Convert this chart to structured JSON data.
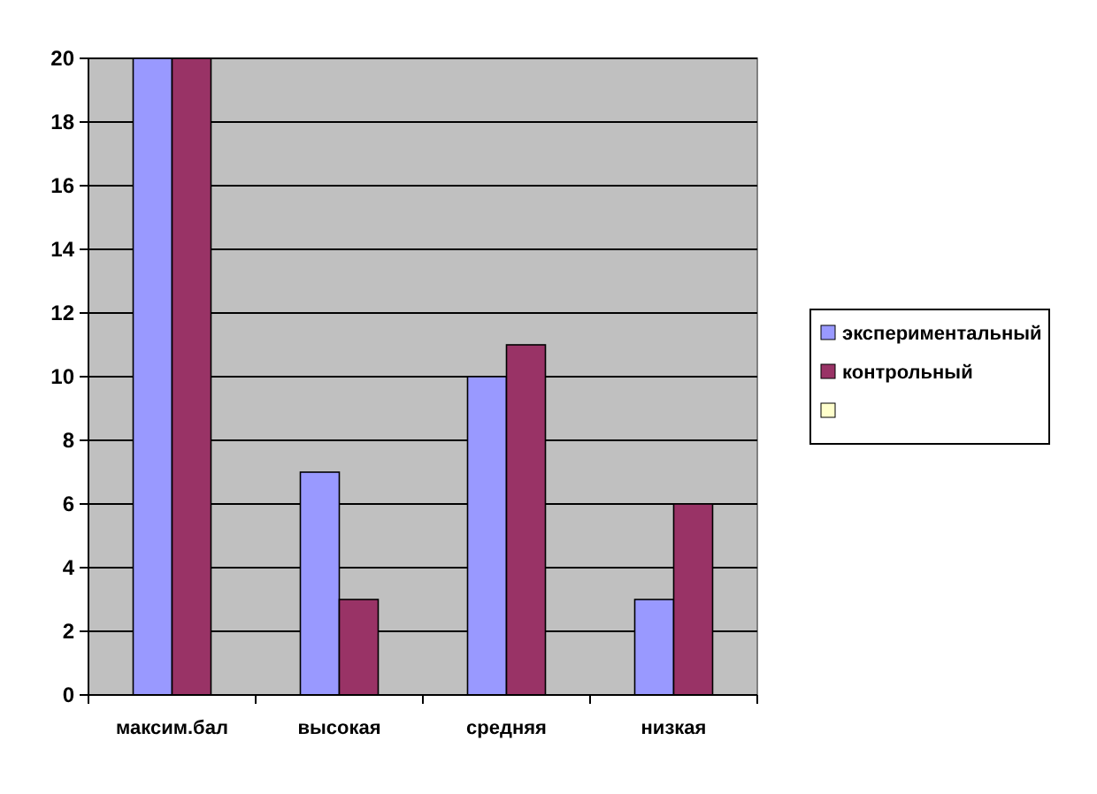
{
  "chart_data": {
    "type": "bar",
    "categories": [
      "максим.бал",
      "высокая",
      "средняя",
      "низкая"
    ],
    "series": [
      {
        "name": "экспериментальный",
        "color": "#9999ff",
        "values": [
          20,
          7,
          10,
          3
        ]
      },
      {
        "name": "контрольный",
        "color": "#993366",
        "values": [
          20,
          3,
          11,
          6
        ]
      },
      {
        "color": "#ffffcc",
        "values": [
          null,
          null,
          null,
          null
        ]
      }
    ],
    "ylim": [
      0,
      20
    ],
    "yticks": [
      0,
      2,
      4,
      6,
      8,
      10,
      12,
      14,
      16,
      18,
      20
    ],
    "grid": "y",
    "legend": "right"
  }
}
